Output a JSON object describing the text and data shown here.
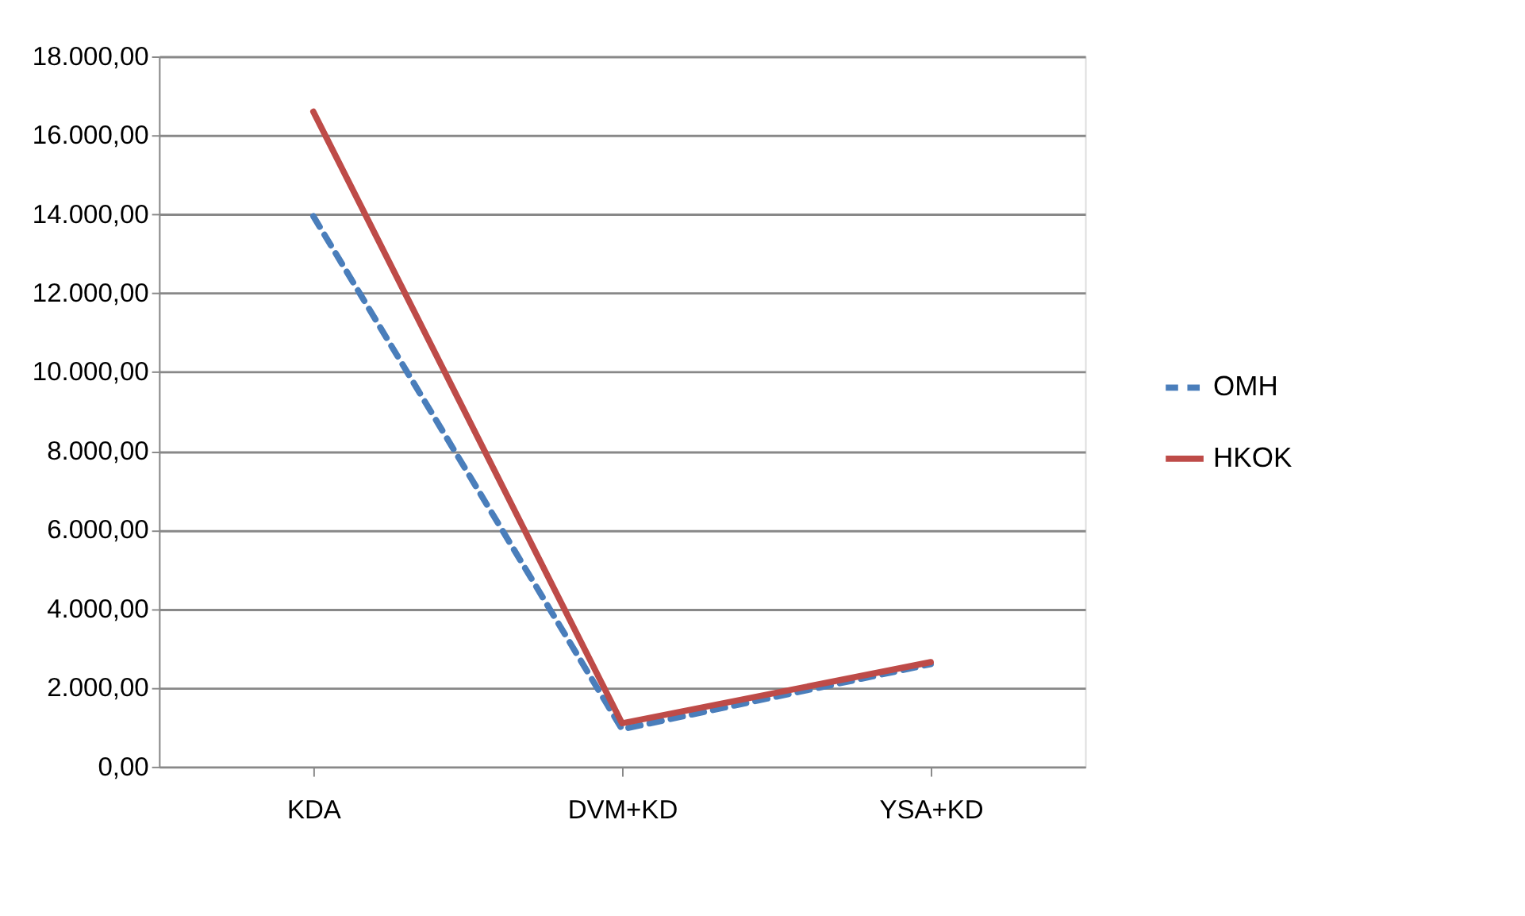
{
  "chart_data": {
    "type": "line",
    "categories": [
      "KDA",
      "DVM+KD",
      "YSA+KD"
    ],
    "series": [
      {
        "name": "OMH",
        "color": "#4a7ebb",
        "line_style": "dashed",
        "values": [
          13950,
          950,
          2600
        ]
      },
      {
        "name": "HKOK",
        "color": "#be4b48",
        "line_style": "solid",
        "values": [
          16600,
          1100,
          2650
        ]
      }
    ],
    "ylim": [
      0,
      18000
    ],
    "yticks": [
      {
        "value": 0,
        "label": "0,00"
      },
      {
        "value": 2000,
        "label": "2.000,00"
      },
      {
        "value": 4000,
        "label": "4.000,00"
      },
      {
        "value": 6000,
        "label": "6.000,00"
      },
      {
        "value": 8000,
        "label": "8.000,00"
      },
      {
        "value": 10000,
        "label": "10.000,00"
      },
      {
        "value": 12000,
        "label": "12.000,00"
      },
      {
        "value": 14000,
        "label": "14.000,00"
      },
      {
        "value": 16000,
        "label": "16.000,00"
      },
      {
        "value": 18000,
        "label": "18.000,00"
      }
    ],
    "grid": "y",
    "legend": "right",
    "marker": "none"
  }
}
